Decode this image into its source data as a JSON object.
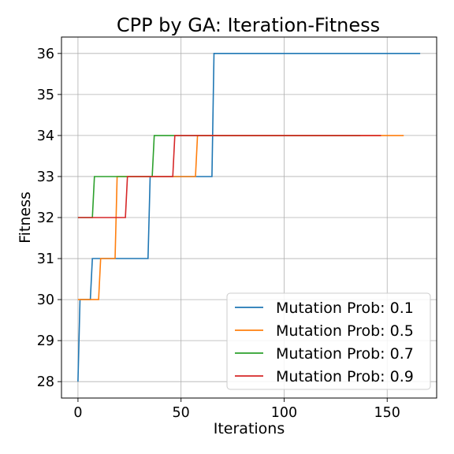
{
  "chart_data": {
    "type": "line",
    "title": "CPP by GA: Iteration-Fitness",
    "xlabel": "Iterations",
    "ylabel": "Fitness",
    "xlim": [
      -8,
      174
    ],
    "ylim": [
      27.6,
      36.4
    ],
    "xticks": [
      0,
      50,
      100,
      150
    ],
    "yticks": [
      28,
      29,
      30,
      31,
      32,
      33,
      34,
      35,
      36
    ],
    "grid": true,
    "legend_position": "lower-right",
    "series": [
      {
        "name": "Mutation Prob: 0.1",
        "color": "#1f77b4",
        "x": [
          0,
          1,
          2,
          6,
          7,
          34,
          35,
          65,
          66,
          166
        ],
        "y": [
          28,
          30,
          30,
          30,
          31,
          31,
          33,
          33,
          36,
          36
        ]
      },
      {
        "name": "Mutation Prob: 0.5",
        "color": "#ff7f0e",
        "x": [
          0,
          10,
          11,
          18,
          19,
          57,
          58,
          158
        ],
        "y": [
          30,
          30,
          31,
          31,
          33,
          33,
          34,
          34
        ]
      },
      {
        "name": "Mutation Prob: 0.7",
        "color": "#2ca02c",
        "x": [
          0,
          7,
          8,
          36,
          37,
          137
        ],
        "y": [
          32,
          32,
          33,
          33,
          34,
          34
        ]
      },
      {
        "name": "Mutation Prob: 0.9",
        "color": "#d62728",
        "x": [
          0,
          23,
          24,
          46,
          47,
          147
        ],
        "y": [
          32,
          32,
          33,
          33,
          34,
          34
        ]
      }
    ]
  }
}
